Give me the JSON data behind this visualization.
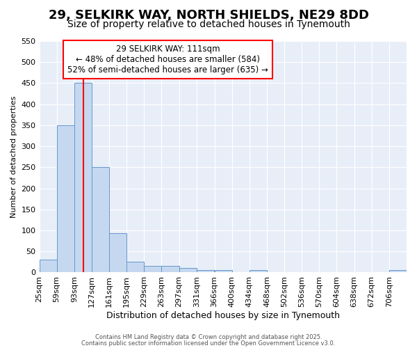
{
  "title1": "29, SELKIRK WAY, NORTH SHIELDS, NE29 8DD",
  "title2": "Size of property relative to detached houses in Tynemouth",
  "xlabel": "Distribution of detached houses by size in Tynemouth",
  "ylabel": "Number of detached properties",
  "bin_edges": [
    25,
    59,
    93,
    127,
    161,
    195,
    229,
    263,
    297,
    331,
    366,
    400,
    434,
    468,
    502,
    536,
    570,
    604,
    638,
    672,
    706,
    740
  ],
  "bin_labels": [
    "25sqm",
    "59sqm",
    "93sqm",
    "127sqm",
    "161sqm",
    "195sqm",
    "229sqm",
    "263sqm",
    "297sqm",
    "331sqm",
    "366sqm",
    "400sqm",
    "434sqm",
    "468sqm",
    "502sqm",
    "536sqm",
    "570sqm",
    "604sqm",
    "638sqm",
    "672sqm",
    "706sqm"
  ],
  "counts": [
    30,
    350,
    450,
    250,
    93,
    25,
    15,
    15,
    10,
    5,
    5,
    0,
    5,
    0,
    0,
    0,
    0,
    0,
    0,
    0,
    5
  ],
  "bar_color": "#c5d8f0",
  "bar_edge_color": "#6699cc",
  "red_line_x": 111,
  "ylim": [
    0,
    550
  ],
  "yticks": [
    0,
    50,
    100,
    150,
    200,
    250,
    300,
    350,
    400,
    450,
    500,
    550
  ],
  "annotation_line1": "29 SELKIRK WAY: 111sqm",
  "annotation_line2": "← 48% of detached houses are smaller (584)",
  "annotation_line3": "52% of semi-detached houses are larger (635) →",
  "footer1": "Contains HM Land Registry data © Crown copyright and database right 2025.",
  "footer2": "Contains public sector information licensed under the Open Government Licence v3.0.",
  "bg_color": "#ffffff",
  "plot_bg_color": "#e8eef8",
  "grid_color": "#ffffff",
  "title1_fontsize": 13,
  "title2_fontsize": 10,
  "xlabel_fontsize": 9,
  "ylabel_fontsize": 8,
  "tick_fontsize": 8,
  "annot_fontsize": 8.5,
  "footer_fontsize": 6
}
